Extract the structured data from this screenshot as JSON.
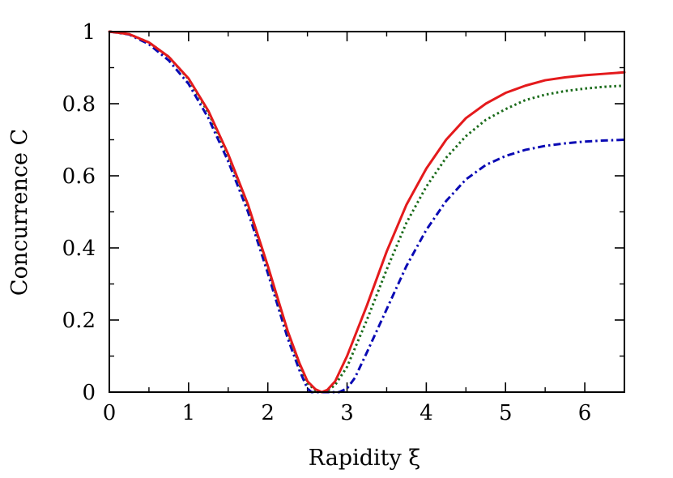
{
  "chart_data": {
    "type": "line",
    "xlabel": "Rapidity ξ",
    "ylabel": "Concurrence C",
    "xlim": [
      0,
      6.5
    ],
    "ylim": [
      0,
      1
    ],
    "x_ticks": [
      "0",
      "1",
      "2",
      "3",
      "4",
      "5",
      "6"
    ],
    "y_ticks": [
      "0",
      "0.2",
      "0.4",
      "0.6",
      "0.8",
      "1"
    ],
    "grid": false,
    "legend": "none",
    "series": [
      {
        "color": "#e41a1c",
        "style": "solid",
        "x": [
          0,
          0.25,
          0.5,
          0.75,
          1.0,
          1.25,
          1.5,
          1.75,
          2.0,
          2.25,
          2.4,
          2.5,
          2.6,
          2.68,
          2.75,
          2.85,
          3.0,
          3.25,
          3.5,
          3.75,
          4.0,
          4.25,
          4.5,
          4.75,
          5.0,
          5.25,
          5.5,
          5.75,
          6.0,
          6.25,
          6.5
        ],
        "y": [
          1.0,
          0.993,
          0.97,
          0.93,
          0.87,
          0.78,
          0.66,
          0.52,
          0.35,
          0.17,
          0.08,
          0.03,
          0.008,
          0.0,
          0.006,
          0.03,
          0.1,
          0.24,
          0.39,
          0.52,
          0.62,
          0.7,
          0.76,
          0.8,
          0.83,
          0.85,
          0.865,
          0.873,
          0.879,
          0.883,
          0.887
        ]
      },
      {
        "color": "#1a6b1a",
        "style": "dotted",
        "x": [
          0,
          0.25,
          0.5,
          0.75,
          1.0,
          1.25,
          1.5,
          1.75,
          2.0,
          2.25,
          2.4,
          2.5,
          2.6,
          2.68,
          2.75,
          2.85,
          3.0,
          3.25,
          3.5,
          3.75,
          4.0,
          4.25,
          4.5,
          4.75,
          5.0,
          5.25,
          5.5,
          5.75,
          6.0,
          6.25,
          6.5
        ],
        "y": [
          1.0,
          0.993,
          0.97,
          0.93,
          0.868,
          0.775,
          0.655,
          0.515,
          0.345,
          0.165,
          0.075,
          0.025,
          0.005,
          0.0,
          0.003,
          0.02,
          0.07,
          0.2,
          0.34,
          0.47,
          0.57,
          0.65,
          0.71,
          0.755,
          0.785,
          0.81,
          0.825,
          0.835,
          0.842,
          0.847,
          0.85
        ]
      },
      {
        "color": "#0a0ab4",
        "style": "dashdot",
        "x": [
          0,
          0.25,
          0.5,
          0.75,
          1.0,
          1.25,
          1.5,
          1.75,
          2.0,
          2.25,
          2.4,
          2.5,
          2.55,
          2.6,
          2.7,
          2.8,
          2.9,
          3.0,
          3.1,
          3.25,
          3.5,
          3.75,
          4.0,
          4.25,
          4.5,
          4.75,
          5.0,
          5.25,
          5.5,
          5.75,
          6.0,
          6.25,
          6.5
        ],
        "y": [
          1.0,
          0.992,
          0.965,
          0.92,
          0.855,
          0.76,
          0.64,
          0.5,
          0.33,
          0.15,
          0.06,
          0.01,
          0.0,
          0.0,
          0.0,
          0.0,
          0.0,
          0.01,
          0.04,
          0.11,
          0.23,
          0.35,
          0.45,
          0.53,
          0.59,
          0.63,
          0.655,
          0.672,
          0.683,
          0.69,
          0.695,
          0.698,
          0.7
        ]
      }
    ]
  }
}
